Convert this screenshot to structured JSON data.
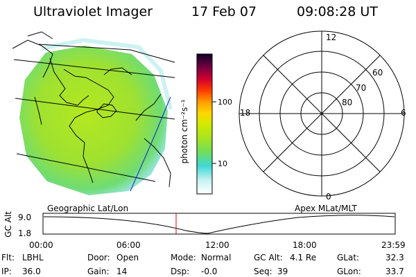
{
  "header": {
    "instrument": "Ultraviolet Imager",
    "date": "17 Feb 07",
    "time": "09:08:28 UT"
  },
  "colorbar": {
    "unit": "photon cm⁻²s⁻¹",
    "tick_100": "100",
    "tick_10": "10",
    "colors": [
      "#ffffff",
      "#b8f0ee",
      "#3ed8d6",
      "#8fe22a",
      "#cdea00",
      "#ffd200",
      "#ff9000",
      "#ff2200",
      "#c80032",
      "#73003c",
      "#1a0030"
    ]
  },
  "polar": {
    "mlt_12": "12",
    "mlt_18": "18",
    "mlt_6": "6",
    "mlt_0": "0",
    "lat_60": "60",
    "lat_70": "70",
    "lat_80": "80"
  },
  "timeline": {
    "left_title": "Geographic Lat/Lon",
    "right_title": "Apex MLat/MLT",
    "axis_label": "GC Alt",
    "y_max": "9.0",
    "y_min": "1.8",
    "ticks": [
      "00:00",
      "06:00",
      "12:00",
      "18:00",
      "23:59"
    ],
    "marker_color": "#e00000"
  },
  "status": {
    "filter_label": "Flt:",
    "filter_value": "LBHL",
    "ip_label": "IP:",
    "ip_value": "36.0",
    "door_label": "Door:",
    "door_value": "Open",
    "gain_label": "Gain:",
    "gain_value": "14",
    "mode_label": "Mode:",
    "mode_value": "Normal",
    "dsp_label": "Dsp:",
    "dsp_value": "-0.0",
    "gcalt_label": "GC Alt:",
    "gcalt_value": "4.1 Re",
    "seq_label": "Seq:",
    "seq_value": "39",
    "glat_label": "GLat:",
    "glat_value": "32.3",
    "glon_label": "GLon:",
    "glon_value": "33.7"
  }
}
